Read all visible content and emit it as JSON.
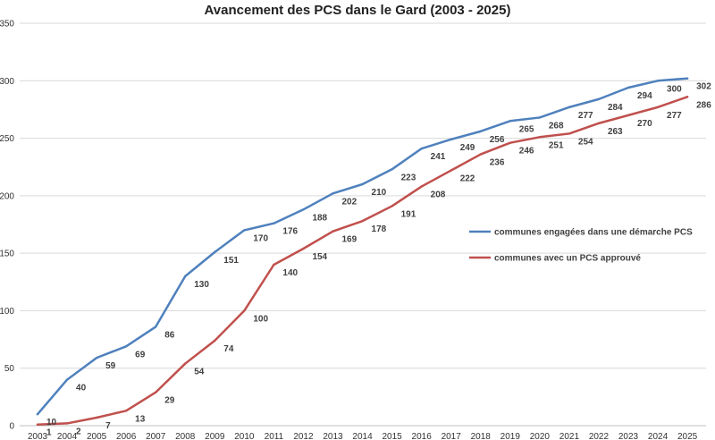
{
  "chart_data": {
    "type": "line",
    "title": "Avancement des PCS dans le Gard (2003 - 2025)",
    "xlabel": "",
    "ylabel": "",
    "ylim": [
      0,
      350
    ],
    "yticks": [
      0,
      50,
      100,
      150,
      200,
      250,
      300,
      350
    ],
    "grid": true,
    "legend_position": "right",
    "categories": [
      "2003",
      "2004",
      "2005",
      "2006",
      "2007",
      "2008",
      "2009",
      "2010",
      "2011",
      "2012",
      "2013",
      "2014",
      "2015",
      "2016",
      "2017",
      "2018",
      "2019",
      "2020",
      "2021",
      "2022",
      "2023",
      "2024",
      "2025"
    ],
    "series": [
      {
        "name": "communes engagées dans une démarche PCS",
        "color": "#4f81bd",
        "values": [
          10,
          40,
          59,
          69,
          86,
          130,
          151,
          170,
          176,
          188,
          202,
          210,
          223,
          241,
          249,
          256,
          265,
          268,
          277,
          284,
          294,
          300,
          302
        ]
      },
      {
        "name": "communes avec un PCS approuvé",
        "color": "#c0504d",
        "values": [
          1,
          2,
          7,
          13,
          29,
          54,
          74,
          100,
          140,
          154,
          169,
          178,
          191,
          208,
          222,
          236,
          246,
          251,
          254,
          263,
          270,
          277,
          286
        ]
      }
    ]
  }
}
